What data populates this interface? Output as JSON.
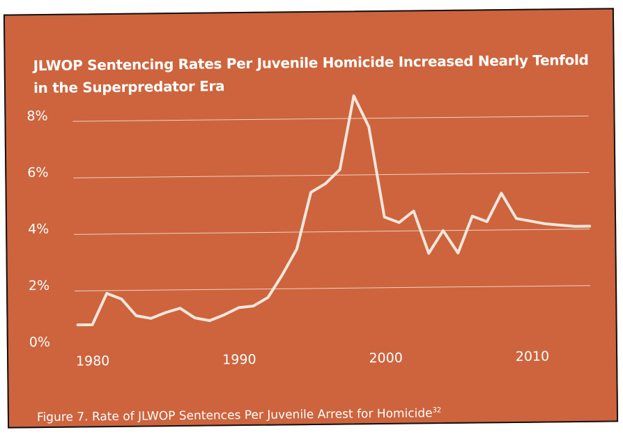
{
  "chart_data": {
    "type": "line",
    "title": "JLWOP Sentencing Rates Per Juvenile Homicide Increased Nearly Tenfold in the Superpredator Era",
    "xlabel": "",
    "ylabel": "",
    "ylim": [
      0,
      9
    ],
    "xlim": [
      1979,
      2014
    ],
    "yticks": [
      0,
      2,
      4,
      6,
      8
    ],
    "ytick_labels": [
      "0%",
      "2%",
      "4%",
      "6%",
      "8%"
    ],
    "xticks": [
      1980,
      1990,
      2000,
      2010
    ],
    "xtick_labels": [
      "1980",
      "1990",
      "2000",
      "2010"
    ],
    "grid": "horizontal",
    "series": [
      {
        "x": [
          1979,
          1980,
          1981,
          1982,
          1983,
          1984,
          1985,
          1986,
          1987,
          1988,
          1989,
          1990,
          1991,
          1992,
          1993,
          1994,
          1995,
          1996,
          1997,
          1998,
          1999,
          2000,
          2001,
          2002,
          2003,
          2004,
          2005,
          2006,
          2007,
          2008,
          2009,
          2010,
          2011,
          2012,
          2013,
          2014
        ],
        "values": [
          0.8,
          0.8,
          1.9,
          1.7,
          1.1,
          1.0,
          1.2,
          1.35,
          1.0,
          0.9,
          1.1,
          1.35,
          1.4,
          1.7,
          2.5,
          3.4,
          5.4,
          5.7,
          6.2,
          8.8,
          7.7,
          4.5,
          4.3,
          4.7,
          3.2,
          4.0,
          3.2,
          4.5,
          4.3,
          5.3,
          4.4,
          4.3,
          4.2,
          4.15,
          4.1,
          4.1
        ]
      }
    ]
  },
  "caption": {
    "text": "Figure 7. Rate of JLWOP Sentences Per Juvenile Arrest for Homicide",
    "footnote": "32"
  },
  "colors": {
    "background": "#cd643d",
    "line": "#f3e6dc",
    "grid": "#ead2c4",
    "text": "#ffffff"
  }
}
